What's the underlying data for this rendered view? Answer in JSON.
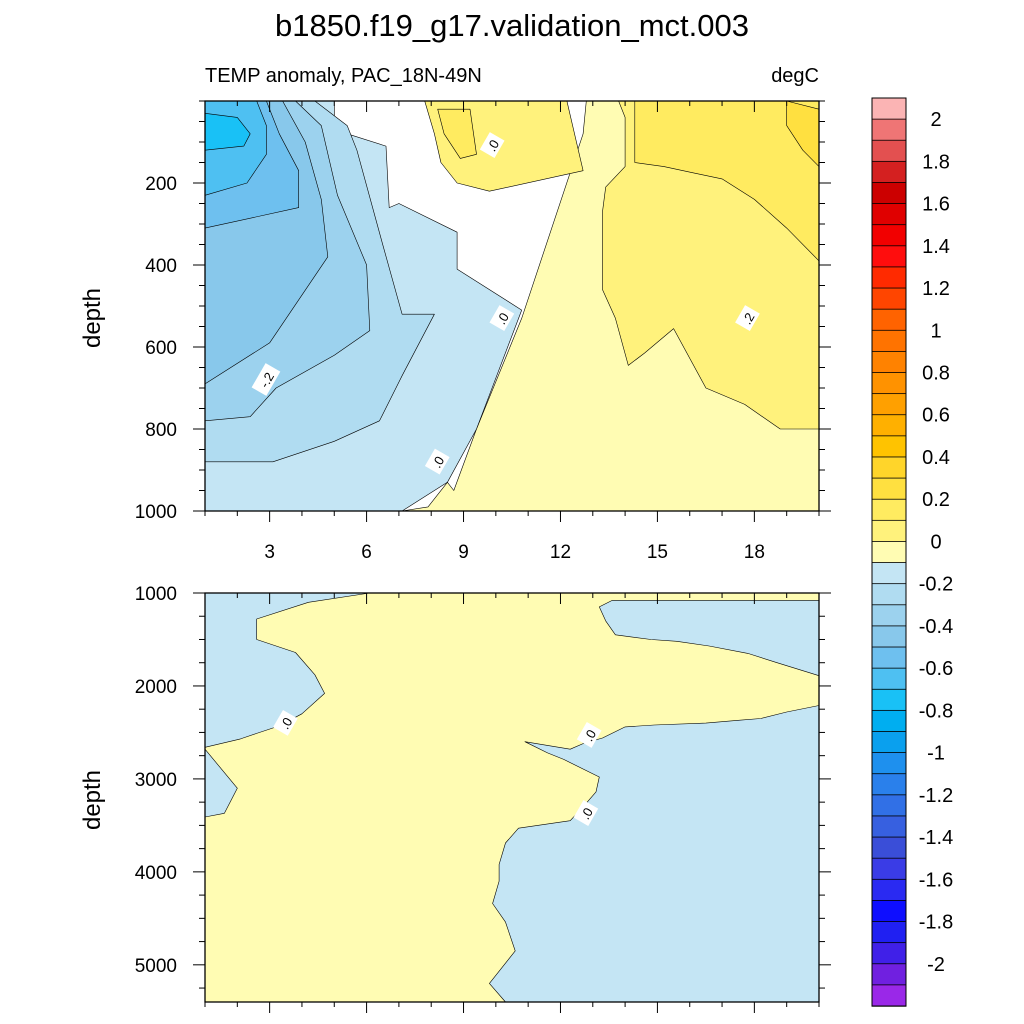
{
  "title": "b1850.f19_g17.validation_mct.003",
  "subtitle_left": "TEMP anomaly, PAC_18N-49N",
  "subtitle_right": "degC",
  "chart_data": [
    {
      "type": "contour",
      "panel": "upper",
      "title": "TEMP anomaly, PAC_18N-49N",
      "units": "degC",
      "xlabel": "",
      "ylabel": "depth",
      "xlim": [
        1,
        20
      ],
      "ylim": [
        0,
        1000
      ],
      "y_reversed": true,
      "xticks": [
        3,
        6,
        9,
        12,
        15,
        18
      ],
      "yticks": [
        200,
        400,
        600,
        800,
        1000
      ],
      "contour_labels": [
        {
          "text": "-.2",
          "x": 2.9,
          "y": 680
        },
        {
          "text": ".0",
          "x": 9.9,
          "y": 108
        },
        {
          "text": ".0",
          "x": 10.2,
          "y": 530
        },
        {
          "text": ".0",
          "x": 8.2,
          "y": 880
        },
        {
          "text": ".2",
          "x": 17.8,
          "y": 530
        }
      ],
      "regions": [
        {
          "level": 0.05,
          "points": [
            [
              1,
              1000
            ],
            [
              7.1,
              1000
            ],
            [
              7.9,
              990
            ],
            [
              8.5,
              930
            ],
            [
              8.7,
              950
            ],
            [
              9.4,
              800
            ],
            [
              10.8,
              530
            ],
            [
              12.7,
              80
            ],
            [
              12.8,
              0
            ],
            [
              20,
              0
            ],
            [
              20,
              1000
            ]
          ]
        },
        {
          "level": 0.15,
          "points": [
            [
              13.8,
              0
            ],
            [
              16,
              0
            ],
            [
              20,
              70
            ],
            [
              20,
              800
            ],
            [
              18.8,
              800
            ],
            [
              17.7,
              740
            ],
            [
              16.5,
              700
            ],
            [
              15.5,
              555
            ],
            [
              14.6,
              615
            ],
            [
              14.1,
              645
            ],
            [
              13.7,
              530
            ],
            [
              13.3,
              460
            ],
            [
              13.3,
              270
            ],
            [
              13.4,
              210
            ],
            [
              14,
              160
            ],
            [
              14,
              40
            ]
          ]
        },
        {
          "level": 0.25,
          "points": [
            [
              14.3,
              0
            ],
            [
              14.3,
              150
            ],
            [
              15.2,
              160
            ],
            [
              16.1,
              175
            ],
            [
              17,
              190
            ],
            [
              18,
              240
            ],
            [
              19,
              310
            ],
            [
              20,
              390
            ],
            [
              20,
              0
            ]
          ]
        },
        {
          "level": 0.35,
          "points": [
            [
              19,
              0
            ],
            [
              20,
              20
            ],
            [
              20,
              160
            ],
            [
              19.5,
              120
            ],
            [
              19,
              60
            ]
          ]
        },
        {
          "level": 0.15,
          "points": [
            [
              7.8,
              0
            ],
            [
              12.2,
              0
            ],
            [
              12.7,
              170
            ],
            [
              9.8,
              220
            ],
            [
              8.8,
              200
            ],
            [
              8.3,
              150
            ],
            [
              8.1,
              80
            ]
          ]
        },
        {
          "level": 0.25,
          "points": [
            [
              8.2,
              20
            ],
            [
              9.2,
              20
            ],
            [
              9.4,
              130
            ],
            [
              8.9,
              140
            ],
            [
              8.4,
              80
            ]
          ]
        },
        {
          "level": -0.05,
          "points": [
            [
              1,
              0
            ],
            [
              5,
              0
            ],
            [
              5,
              70
            ],
            [
              6.6,
              110
            ],
            [
              6.7,
              260
            ],
            [
              7,
              250
            ],
            [
              8.8,
              320
            ],
            [
              8.8,
              410
            ],
            [
              10.8,
              510
            ],
            [
              9.4,
              800
            ],
            [
              8.5,
              930
            ],
            [
              7.1,
              1000
            ],
            [
              1,
              1000
            ]
          ]
        },
        {
          "level": -0.15,
          "points": [
            [
              1,
              0
            ],
            [
              4.4,
              0
            ],
            [
              5.4,
              60
            ],
            [
              5.7,
              120
            ],
            [
              6.5,
              350
            ],
            [
              7.1,
              520
            ],
            [
              8.1,
              520
            ],
            [
              7.1,
              670
            ],
            [
              6.4,
              780
            ],
            [
              5,
              830
            ],
            [
              3.1,
              880
            ],
            [
              1,
              880
            ]
          ]
        },
        {
          "level": -0.25,
          "points": [
            [
              1,
              0
            ],
            [
              3.8,
              0
            ],
            [
              4.6,
              60
            ],
            [
              5.1,
              230
            ],
            [
              6,
              400
            ],
            [
              6.1,
              560
            ],
            [
              5,
              620
            ],
            [
              3.2,
              700
            ],
            [
              2.4,
              770
            ],
            [
              1,
              780
            ]
          ]
        },
        {
          "level": -0.35,
          "points": [
            [
              1,
              0
            ],
            [
              3.4,
              0
            ],
            [
              4.1,
              100
            ],
            [
              4.6,
              240
            ],
            [
              4.8,
              380
            ],
            [
              3,
              590
            ],
            [
              1,
              690
            ]
          ]
        },
        {
          "level": -0.45,
          "points": [
            [
              1,
              0
            ],
            [
              2.9,
              0
            ],
            [
              3.3,
              80
            ],
            [
              3.9,
              170
            ],
            [
              3.9,
              260
            ],
            [
              1,
              310
            ]
          ]
        },
        {
          "level": -0.55,
          "points": [
            [
              1,
              0
            ],
            [
              2.6,
              0
            ],
            [
              2.9,
              60
            ],
            [
              2.9,
              130
            ],
            [
              2.3,
              200
            ],
            [
              1,
              230
            ]
          ]
        },
        {
          "level": -0.65,
          "points": [
            [
              1,
              30
            ],
            [
              2,
              40
            ],
            [
              2.4,
              80
            ],
            [
              2.2,
              110
            ],
            [
              1,
              120
            ]
          ]
        }
      ]
    },
    {
      "type": "contour",
      "panel": "lower",
      "title": "",
      "xlabel": "",
      "ylabel": "depth",
      "xlim": [
        1,
        20
      ],
      "ylim": [
        1000,
        5400
      ],
      "y_reversed": true,
      "xticks": [
        3,
        6,
        9,
        12,
        15,
        18
      ],
      "yticks": [
        1000,
        2000,
        3000,
        4000,
        5000
      ],
      "contour_labels": [
        {
          "text": ".0",
          "x": 3.5,
          "y": 2400
        },
        {
          "text": ".0",
          "x": 12.9,
          "y": 2530
        },
        {
          "text": ".0",
          "x": 12.8,
          "y": 3370
        }
      ],
      "regions": [
        {
          "level": 0.05,
          "points": [
            [
              1,
              1000
            ],
            [
              20,
              1000
            ],
            [
              20,
              5400
            ],
            [
              1,
              5400
            ]
          ]
        },
        {
          "level": -0.05,
          "points": [
            [
              1,
              1000
            ],
            [
              6.1,
              1000
            ],
            [
              4.2,
              1100
            ],
            [
              2.6,
              1280
            ],
            [
              2.6,
              1500
            ],
            [
              3.8,
              1640
            ],
            [
              4.4,
              1880
            ],
            [
              4.7,
              2080
            ],
            [
              4,
              2300
            ],
            [
              3.3,
              2430
            ],
            [
              2.6,
              2510
            ],
            [
              2.1,
              2570
            ],
            [
              1,
              2660
            ]
          ]
        },
        {
          "level": -0.05,
          "points": [
            [
              1,
              2680
            ],
            [
              2,
              3100
            ],
            [
              1.6,
              3370
            ],
            [
              1,
              3410
            ]
          ]
        },
        {
          "level": -0.05,
          "points": [
            [
              13.2,
              1150
            ],
            [
              13.6,
              1080
            ],
            [
              20,
              1080
            ],
            [
              20,
              1890
            ],
            [
              18.7,
              1750
            ],
            [
              17.8,
              1650
            ],
            [
              16.6,
              1570
            ],
            [
              15.6,
              1520
            ],
            [
              14.8,
              1500
            ],
            [
              13.7,
              1450
            ],
            [
              13.4,
              1300
            ]
          ]
        },
        {
          "level": -0.05,
          "points": [
            [
              20,
              2210
            ],
            [
              19,
              2280
            ],
            [
              18.2,
              2350
            ],
            [
              17.5,
              2370
            ],
            [
              16.5,
              2400
            ],
            [
              14.9,
              2420
            ],
            [
              14,
              2440
            ],
            [
              13.3,
              2560
            ],
            [
              12.7,
              2620
            ],
            [
              12.3,
              2680
            ],
            [
              11.6,
              2640
            ],
            [
              10.9,
              2600
            ],
            [
              11.6,
              2720
            ],
            [
              12.1,
              2790
            ],
            [
              13.2,
              2980
            ],
            [
              13.1,
              3140
            ],
            [
              12.7,
              3300
            ],
            [
              12.3,
              3450
            ],
            [
              10.7,
              3530
            ],
            [
              10.3,
              3690
            ],
            [
              10.1,
              3920
            ],
            [
              10.1,
              4100
            ],
            [
              9.9,
              4340
            ],
            [
              10.3,
              4540
            ],
            [
              10.6,
              4850
            ],
            [
              9.8,
              5200
            ],
            [
              10.3,
              5400
            ],
            [
              20,
              5400
            ]
          ]
        }
      ]
    }
  ],
  "colorbar": {
    "labels": [
      "2",
      "1.8",
      "1.6",
      "1.4",
      "1.2",
      "1",
      "0.8",
      "0.6",
      "0.4",
      "0.2",
      "0",
      "-0.2",
      "-0.4",
      "-0.6",
      "-0.8",
      "-1",
      "-1.2",
      "-1.4",
      "-1.6",
      "-1.8",
      "-2"
    ],
    "colors": [
      "#FBB4B4",
      "#EF7575",
      "#E35050",
      "#D42020",
      "#CC0000",
      "#E00000",
      "#F20000",
      "#FF0D0D",
      "#FF2A00",
      "#FF4500",
      "#FF6300",
      "#FF7300",
      "#FF8200",
      "#FF9200",
      "#FFA000",
      "#FFB000",
      "#FFC300",
      "#FFD52A",
      "#FFE040",
      "#FFEB60",
      "#FFF27C",
      "#FFFCB3",
      "#C4E5F4",
      "#B0DCF1",
      "#9CD2EE",
      "#88C8EB",
      "#6EC0EF",
      "#4EC0F2",
      "#19C1F6",
      "#00AEF0",
      "#0AA0EE",
      "#1E90EE",
      "#2A80EB",
      "#3170E6",
      "#3760E0",
      "#3A4ED8",
      "#3A3CE6",
      "#2A2AF2",
      "#0E0EFF",
      "#2020F2",
      "#4020E8",
      "#7020E0",
      "#9A28E8"
    ]
  }
}
